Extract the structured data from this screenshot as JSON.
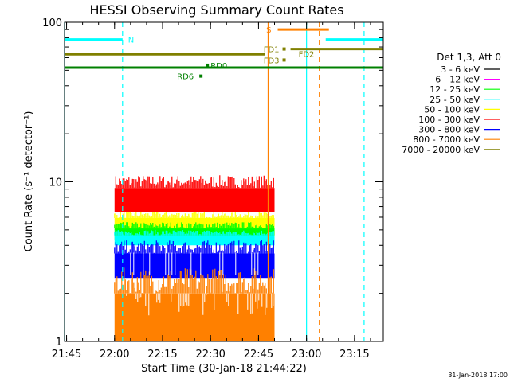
{
  "chart_data": {
    "type": "line",
    "title": "HESSI Observing Summary Count Rates",
    "xlabel": "Start Time (30-Jan-18 21:44:22)",
    "ylabel": "Count Rate (s⁻¹ detector⁻¹)",
    "yscale": "log",
    "ylim": [
      1,
      100
    ],
    "xlim": [
      "21:44:22",
      "23:24:00"
    ],
    "x_ticks": [
      "21:45",
      "22:00",
      "22:15",
      "22:30",
      "22:45",
      "23:00",
      "23:15"
    ],
    "y_ticks": [
      "1",
      "10",
      "100"
    ],
    "grid": false,
    "legend": {
      "placement": "right",
      "header": "Det 1,3, Att 0",
      "entries": [
        {
          "label": "3 - 6 keV",
          "color": "#000000"
        },
        {
          "label": "6 - 12 keV",
          "color": "#ff00ff"
        },
        {
          "label": "12 - 25 keV",
          "color": "#00ff00"
        },
        {
          "label": "25 - 50 keV",
          "color": "#00ffff"
        },
        {
          "label": "50 - 100 keV",
          "color": "#ffff00"
        },
        {
          "label": "100 - 300 keV",
          "color": "#ff0000"
        },
        {
          "label": "300 - 800 keV",
          "color": "#0000ff"
        },
        {
          "label": "800 - 7000 keV",
          "color": "#ff8000"
        },
        {
          "label": "7000 - 20000 keV",
          "color": "#808000"
        }
      ]
    },
    "data_span": {
      "start": "22:00",
      "end": "22:50"
    },
    "bands": [
      {
        "name": "100 - 300 keV",
        "color": "#ff0000",
        "low": 6.5,
        "high": 11
      },
      {
        "name": "50 - 100 keV",
        "color": "#ffff00",
        "low": 5.0,
        "high": 6.5
      },
      {
        "name": "12 - 25 keV",
        "color": "#00ff00",
        "low": 4.3,
        "high": 5.6
      },
      {
        "name": "25 - 50 keV",
        "color": "#00ffff",
        "low": 4.0,
        "high": 5.0
      },
      {
        "name": "300 - 800 keV",
        "color": "#0000ff",
        "low": 2.5,
        "high": 4.3
      },
      {
        "name": "800 - 7000 keV",
        "color": "#ff8000",
        "low": 1,
        "high": 2.9
      }
    ],
    "flag_lines": [
      {
        "label": "N",
        "color": "#00ffff",
        "level": 78,
        "start": "21:44:22",
        "end": "22:02:30"
      },
      {
        "label": "",
        "color": "#00ffff",
        "level": 78,
        "start": "23:06",
        "end": "23:24:00"
      },
      {
        "label": "S",
        "color": "#ff8000",
        "level": 90,
        "start": "22:51",
        "end": "23:07"
      },
      {
        "label": "FD1",
        "color": "#808000",
        "level": 68,
        "start": "22:53",
        "end": "22:53"
      },
      {
        "label": "FD2",
        "color": "#808000",
        "level": 68,
        "start": "22:55",
        "end": "23:24:00"
      },
      {
        "label": "",
        "color": "#808000",
        "level": 63,
        "start": "21:44:22",
        "end": "22:47"
      },
      {
        "label": "FD3",
        "color": "#808000",
        "level": 58,
        "start": "22:53",
        "end": "22:53"
      },
      {
        "label": "RD0",
        "color": "#008000",
        "level": 52,
        "start": "21:44:22",
        "end": "23:24:00"
      },
      {
        "label": "RD6",
        "color": "#008000",
        "level": 46,
        "start": "22:27",
        "end": "22:27"
      }
    ],
    "vertical_lines": [
      {
        "time": "21:44:22",
        "color": "#00ffff",
        "style": "solid"
      },
      {
        "time": "22:02:30",
        "color": "#00ffff",
        "style": "dashed"
      },
      {
        "time": "22:48",
        "color": "#ff8000",
        "style": "solid"
      },
      {
        "time": "23:00",
        "color": "#00ffff",
        "style": "solid"
      },
      {
        "time": "23:04",
        "color": "#ff8000",
        "style": "dashed"
      },
      {
        "time": "23:18",
        "color": "#00ffff",
        "style": "dashed"
      }
    ]
  },
  "footer": {
    "timestamp": "31-Jan-2018 17:00"
  }
}
